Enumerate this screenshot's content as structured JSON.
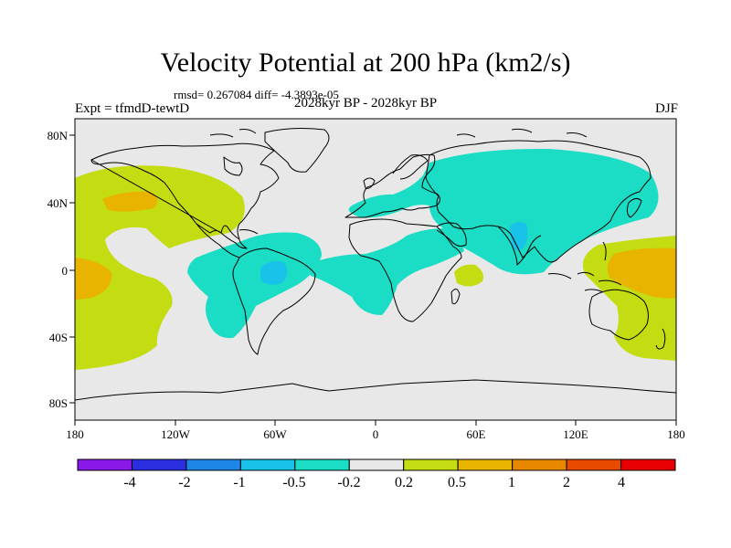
{
  "title": "Velocity Potential at 200 hPa (km2/s)",
  "stats": "rmsd= 0.267084 diff= -4.3893e-05",
  "experiment": "Expt = tfmdD-tewtD",
  "period": "2028kyr BP - 2028kyr BP",
  "season": "DJF",
  "lat_ticks": [
    "80N",
    "40N",
    "0",
    "40S",
    "80S"
  ],
  "lon_ticks": [
    "180",
    "120W",
    "60W",
    "0",
    "60E",
    "120E",
    "180"
  ],
  "colorbar": {
    "labels": [
      "-4",
      "-2",
      "-1",
      "-0.5",
      "-0.2",
      "0.2",
      "0.5",
      "1",
      "2",
      "4"
    ],
    "colors": [
      "#8a18e8",
      "#2a2ee0",
      "#1e86e6",
      "#19c2e8",
      "#1bdcc4",
      "#e8e8e8",
      "#c4dc12",
      "#e8b400",
      "#e88800",
      "#e84a00",
      "#e80000"
    ]
  },
  "colors": {
    "background": "#e8e8e8",
    "negative_weak": "#1bdcc4",
    "negative_mid": "#19c2e8",
    "positive_weak": "#c4dc12",
    "positive_mid": "#e8b400",
    "coastline": "#000000"
  }
}
